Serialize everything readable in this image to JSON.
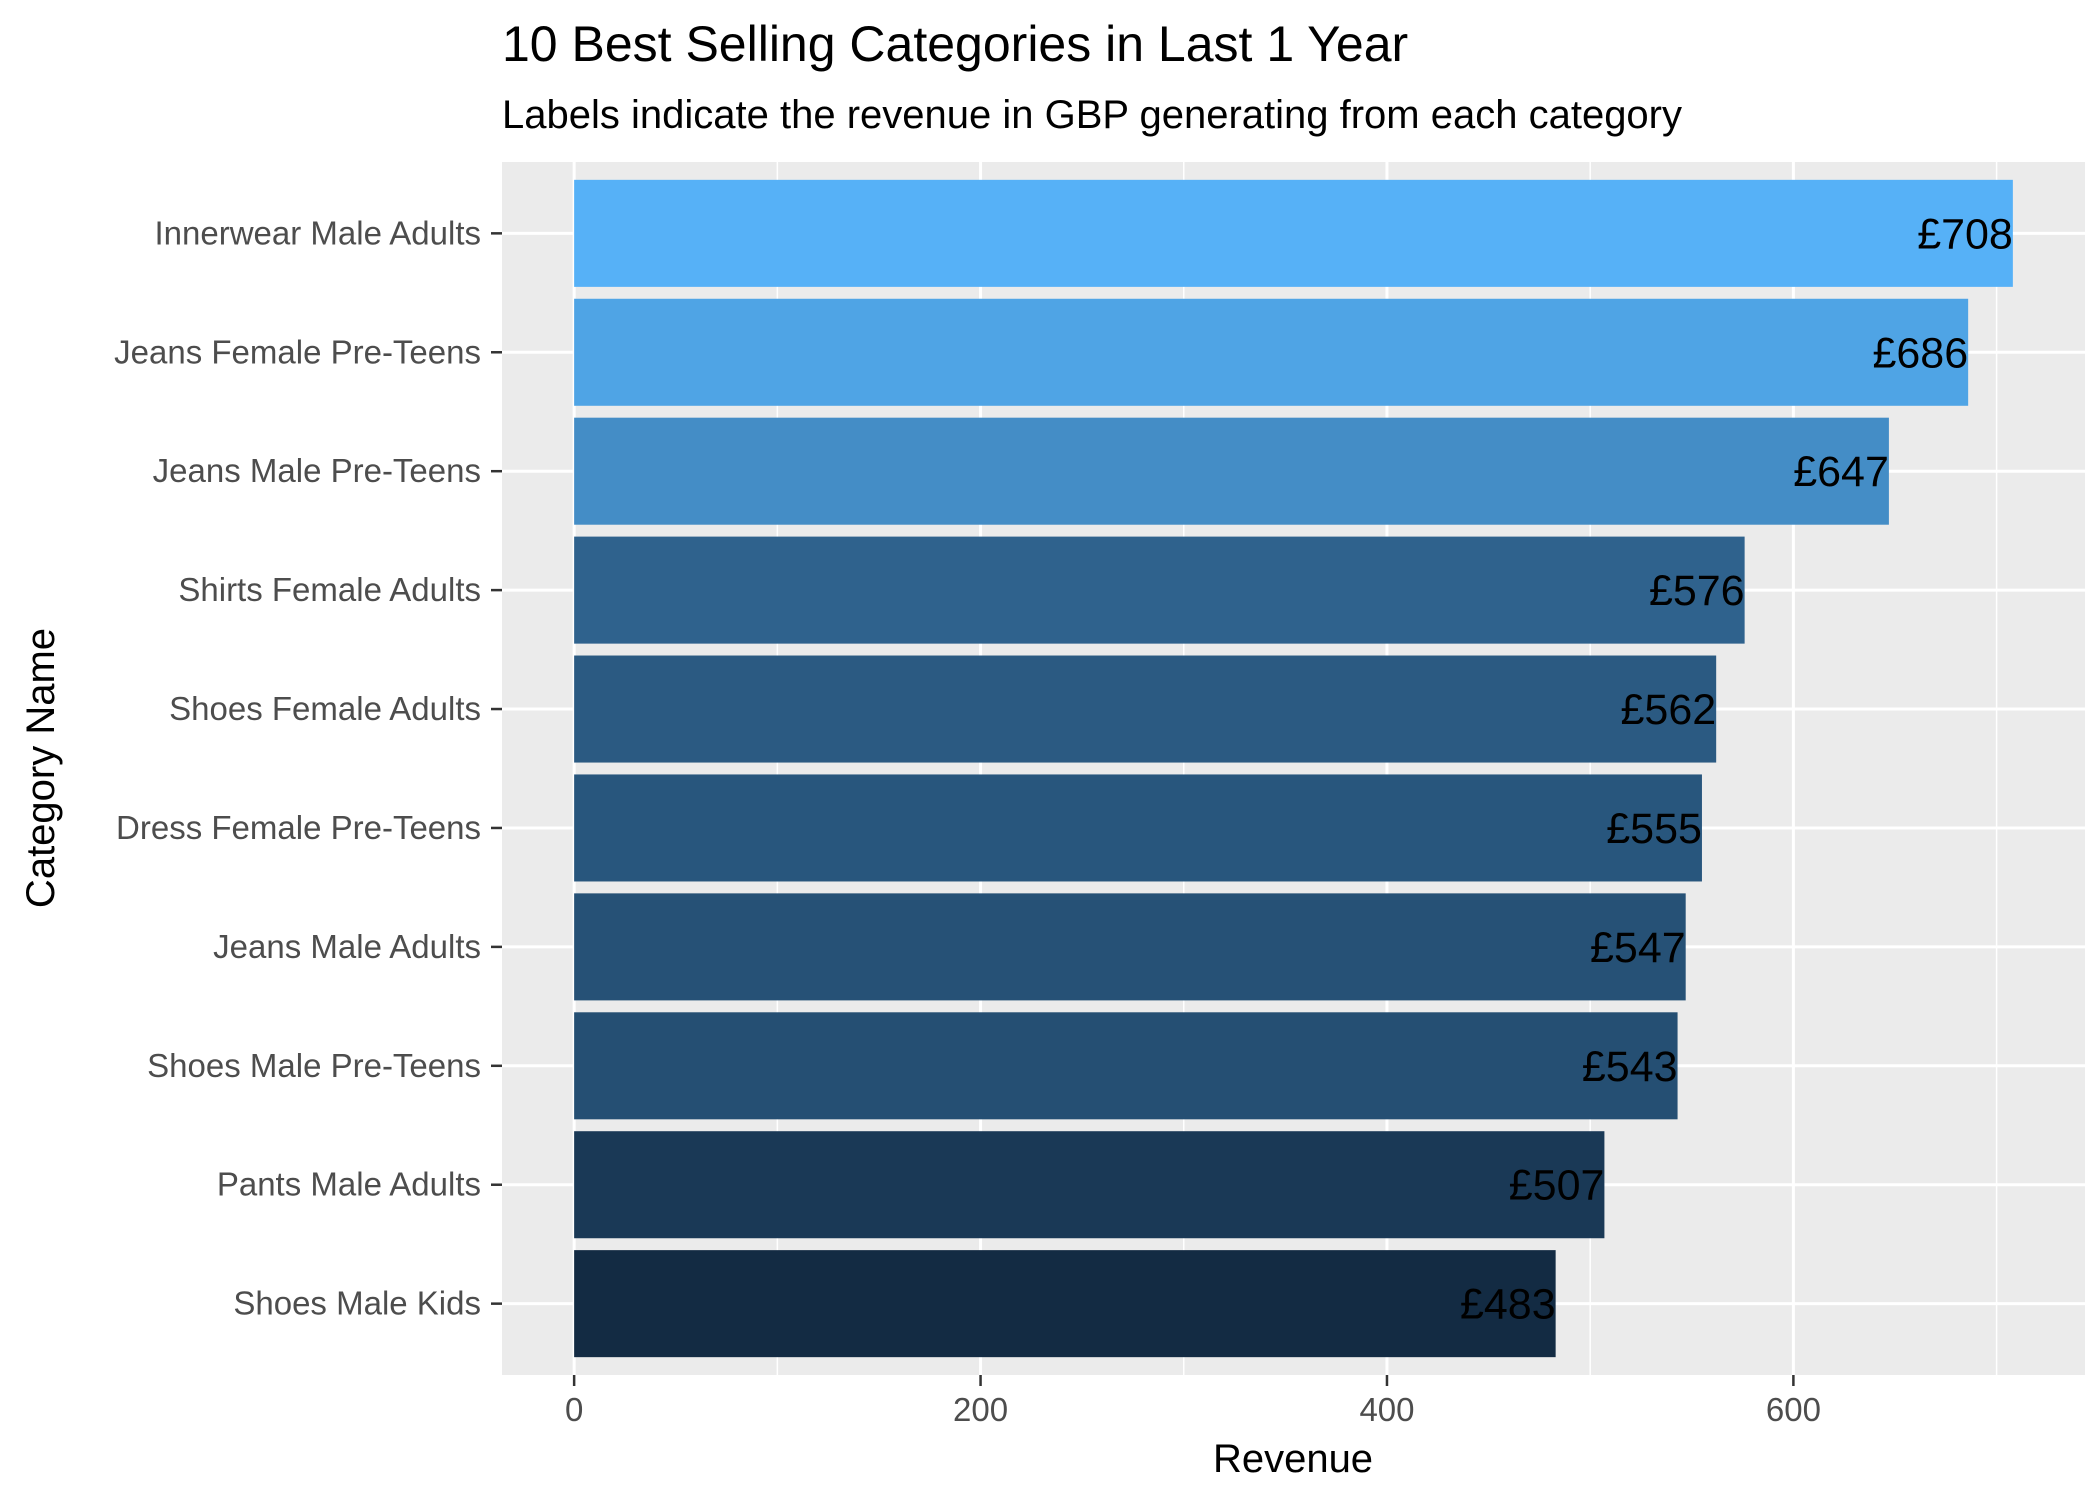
{
  "chart_data": {
    "type": "bar",
    "orientation": "horizontal",
    "title": "10 Best Selling Categories in Last 1 Year",
    "subtitle": "Labels indicate the revenue in GBP generating from each category",
    "xlabel": "Revenue",
    "ylabel": "Category Name",
    "xlim": [
      0,
      740
    ],
    "x_ticks": [
      0,
      200,
      400,
      600
    ],
    "grid": true,
    "legend": "none",
    "panel_background": "#ebebeb",
    "gridline_color": "#ffffff",
    "color_scale": [
      "#132b43",
      "#56b1f7"
    ],
    "categories": [
      "Innerwear Male Adults",
      "Jeans Female Pre-Teens",
      "Jeans Male Pre-Teens",
      "Shirts Female Adults",
      "Shoes Female Adults",
      "Dress Female Pre-Teens",
      "Jeans Male Adults",
      "Shoes Male Pre-Teens",
      "Pants Male Adults",
      "Shoes Male Kids"
    ],
    "values": [
      708,
      686,
      647,
      576,
      562,
      555,
      547,
      543,
      507,
      483
    ],
    "labels": [
      "£708",
      "£686",
      "£647",
      "£576",
      "£562",
      "£555",
      "£547",
      "£543",
      "£507",
      "£483"
    ]
  }
}
